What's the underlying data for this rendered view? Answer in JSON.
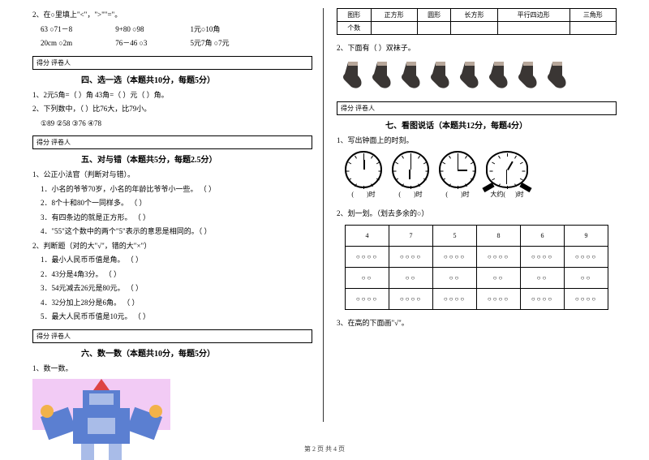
{
  "left": {
    "q2": {
      "title": "2、在○里填上\"<\"，\">\"\"=\"。",
      "rows": [
        [
          "63 ○71－8",
          "9+80 ○98",
          "1元○10角"
        ],
        [
          "20cm ○2m",
          "76－46 ○3",
          "5元7角 ○7元"
        ]
      ]
    },
    "scoreLabel": "得分  评卷人",
    "sec4": {
      "title": "四、选一选（本题共10分，每题5分）",
      "items": [
        "1、2元5角=（    ）角    43角=（    ）元（    ）角。",
        "2、下列数中，（    ）比76大，比79小。",
        "   ①89    ②58    ③76    ④78"
      ]
    },
    "sec5": {
      "title": "五、对与错（本题共5分，每题2.5分）",
      "g1title": "1、公正小法官（判断对与错）。",
      "g1": [
        "1．小名的爷爷70岁，小名的年龄比爷爷小一些。    （    ）",
        "2．8个十和80个一同样多。                           （    ）",
        "3．有四条边的就是正方形。                            （    ）",
        "4．\"55\"这个数中的两个\"5\"表示的意思是相同的。（    ）"
      ],
      "g2title": "2、判断题（对的大\"√\"，错的大\"×\"）",
      "g2": [
        "1．最小人民币币值是角。          （    ）",
        "2．43分是4角3分。                 （    ）",
        "3．54元减去26元是80元。         （    ）",
        "4．32分加上28分是6角。          （    ）",
        "5．最大人民币币值是10元。       （    ）"
      ]
    },
    "sec6": {
      "title": "六、数一数（本题共10分，每题5分）",
      "item": "1、数一数。"
    }
  },
  "right": {
    "shapeTable": {
      "headers": [
        "图形",
        "正方形",
        "圆形",
        "长方形",
        "平行四边形",
        "三角形"
      ],
      "row1Label": "个数"
    },
    "q2": "2、下面有（    ）双袜子。",
    "sec7": {
      "title": "七、看图说话（本题共12分，每题4分）",
      "q1": "1、写出钟面上的时刻。",
      "clockLabels": [
        "(        )时",
        "(        )时",
        "(        )时",
        "大约(      )时"
      ],
      "q2": "2、划一划。（划去多余的○）",
      "gridHead": [
        "4",
        "7",
        "5",
        "8",
        "6",
        "9"
      ],
      "gridRows": [
        [
          "○○○○",
          "○○○○",
          "○○○○",
          "○○○○",
          "○○○○",
          "○○○○"
        ],
        [
          "○○",
          "○○",
          "○○",
          "○○",
          "○○",
          "○○"
        ],
        [
          "○○○○",
          "○○○○",
          "○○○○",
          "○○○○",
          "○○○○",
          "○○○○"
        ]
      ],
      "q3": "3、在高的下面画\"√\"。"
    }
  },
  "clockHands": [
    {
      "hour": -90,
      "min": 0
    },
    {
      "hour": 90,
      "min": 0
    },
    {
      "hour": 0,
      "min": 0
    },
    {
      "hour": -60,
      "min": 180
    }
  ],
  "footer": "第 2 页 共 4 页",
  "colors": {
    "sockDark": "#3a3634",
    "sockLight": "#b7a79a",
    "robotBg": "#f2cbf5",
    "robotBody": "#5b7fd1"
  }
}
